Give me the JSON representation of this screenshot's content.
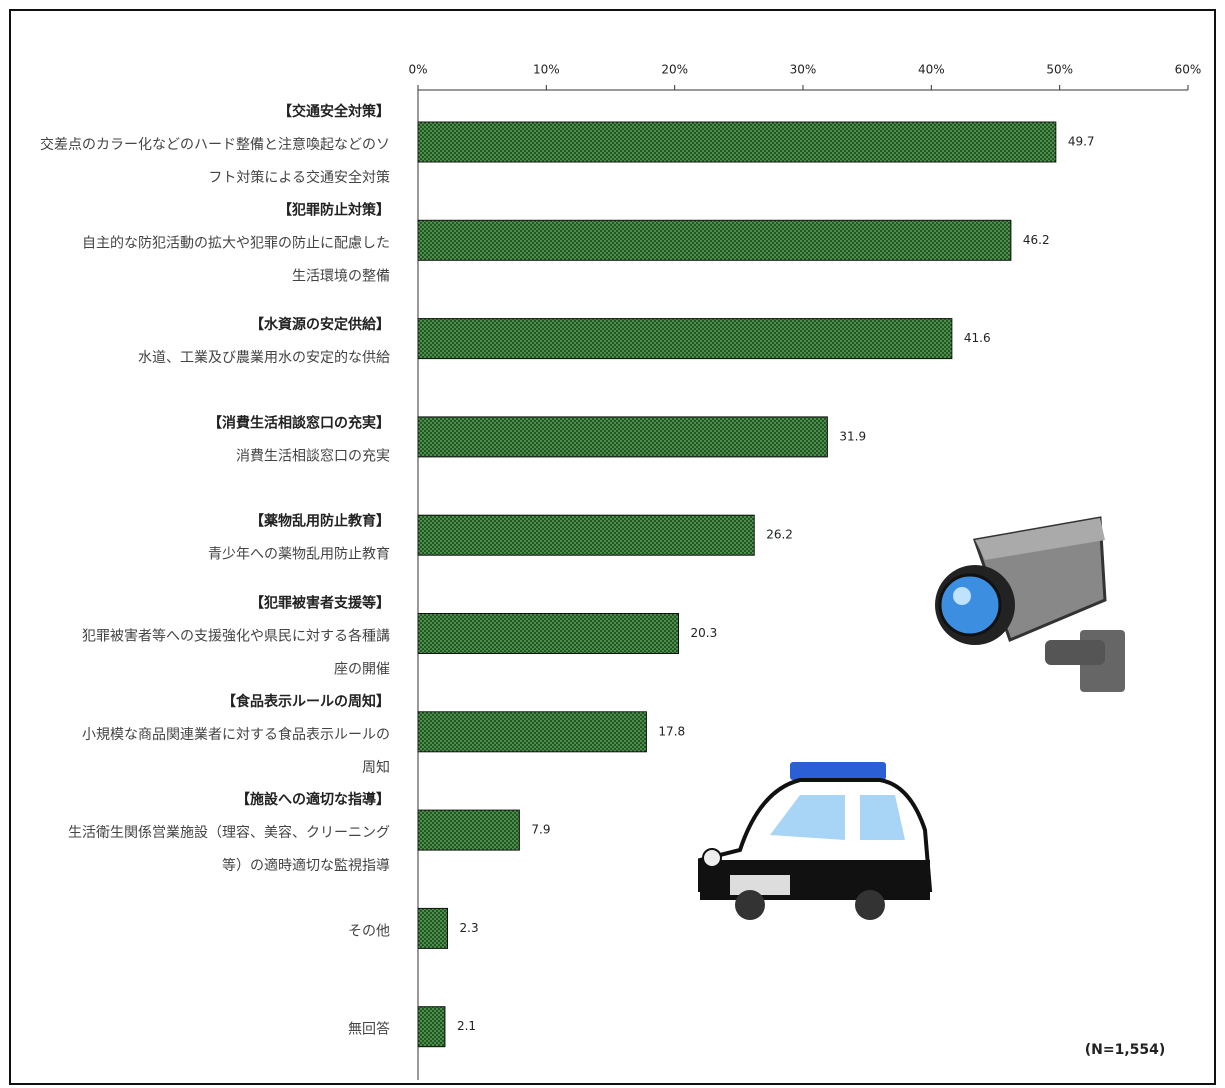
{
  "chart_data": {
    "type": "bar",
    "orientation": "horizontal",
    "categories": [
      {
        "heading": "【交通安全対策】",
        "lines": [
          "交差点のカラー化などのハード整備と注意喚起などのソ",
          "フト対策による交通安全対策"
        ]
      },
      {
        "heading": "【犯罪防止対策】",
        "lines": [
          "自主的な防犯活動の拡大や犯罪の防止に配慮した",
          "生活環境の整備"
        ]
      },
      {
        "heading": "【水資源の安定供給】",
        "lines": [
          "水道、工業及び農業用水の安定的な供給"
        ]
      },
      {
        "heading": "【消費生活相談窓口の充実】",
        "lines": [
          "消費生活相談窓口の充実"
        ]
      },
      {
        "heading": "【薬物乱用防止教育】",
        "lines": [
          "青少年への薬物乱用防止教育"
        ]
      },
      {
        "heading": "【犯罪被害者支援等】",
        "lines": [
          "犯罪被害者等への支援強化や県民に対する各種講",
          "座の開催"
        ]
      },
      {
        "heading": "【食品表示ルールの周知】",
        "lines": [
          "小規模な商品関連業者に対する食品表示ルールの",
          "周知"
        ]
      },
      {
        "heading": "【施設への適切な指導】",
        "lines": [
          "生活衛生関係営業施設（理容、美容、クリーニング",
          "等）の適時適切な監視指導"
        ]
      },
      {
        "heading": null,
        "lines": [
          "その他"
        ]
      },
      {
        "heading": null,
        "lines": [
          "無回答"
        ]
      }
    ],
    "values": [
      49.7,
      46.2,
      41.6,
      31.9,
      26.2,
      20.3,
      17.8,
      7.9,
      2.3,
      2.1
    ],
    "color": "#1e5a1e",
    "xlim": [
      0,
      60
    ],
    "xticks": [
      {
        "value": 0,
        "label": "0%"
      },
      {
        "value": 10,
        "label": "10%"
      },
      {
        "value": 20,
        "label": "20%"
      },
      {
        "value": 30,
        "label": "30%"
      },
      {
        "value": 40,
        "label": "40%"
      },
      {
        "value": 50,
        "label": "50%"
      },
      {
        "value": 60,
        "label": "60%"
      }
    ],
    "annotation": "(N=1,554)"
  }
}
